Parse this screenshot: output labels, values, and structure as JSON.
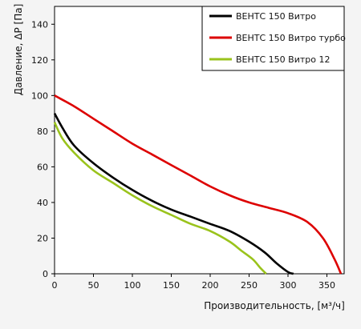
{
  "chart_data": {
    "type": "line",
    "title": "",
    "xlabel": "Производительность, [м³/ч]",
    "ylabel": "Давление, ΔP [Па]",
    "xlim": [
      0,
      390
    ],
    "ylim": [
      0,
      150
    ],
    "xticks": [
      0,
      50,
      100,
      150,
      200,
      250,
      300,
      350
    ],
    "yticks": [
      0,
      20,
      40,
      60,
      80,
      100,
      120,
      140
    ],
    "grid": false,
    "legend_position": "top-right",
    "series": [
      {
        "name": "ВЕНТС 150 Витро",
        "color": "#000000",
        "points": [
          [
            0,
            90
          ],
          [
            10,
            82
          ],
          [
            25,
            72
          ],
          [
            50,
            62
          ],
          [
            75,
            54
          ],
          [
            100,
            47
          ],
          [
            125,
            41
          ],
          [
            150,
            36
          ],
          [
            175,
            32
          ],
          [
            200,
            28
          ],
          [
            225,
            24
          ],
          [
            250,
            18
          ],
          [
            270,
            12
          ],
          [
            285,
            6
          ],
          [
            300,
            1
          ],
          [
            307,
            0
          ]
        ]
      },
      {
        "name": "ВЕНТС 150 Витро турбо",
        "color": "#dd0000",
        "points": [
          [
            0,
            100
          ],
          [
            25,
            94
          ],
          [
            50,
            87
          ],
          [
            75,
            80
          ],
          [
            100,
            73
          ],
          [
            125,
            67
          ],
          [
            150,
            61
          ],
          [
            175,
            55
          ],
          [
            200,
            49
          ],
          [
            225,
            44
          ],
          [
            250,
            40
          ],
          [
            275,
            37
          ],
          [
            300,
            34
          ],
          [
            325,
            29
          ],
          [
            345,
            20
          ],
          [
            360,
            8
          ],
          [
            368,
            0
          ]
        ]
      },
      {
        "name": "ВЕНТС 150 Витро 12",
        "color": "#9ac31c",
        "points": [
          [
            0,
            85
          ],
          [
            10,
            76
          ],
          [
            25,
            68
          ],
          [
            50,
            58
          ],
          [
            75,
            51
          ],
          [
            100,
            44
          ],
          [
            125,
            38
          ],
          [
            150,
            33
          ],
          [
            175,
            28
          ],
          [
            200,
            24
          ],
          [
            225,
            18
          ],
          [
            240,
            13
          ],
          [
            255,
            8
          ],
          [
            265,
            3
          ],
          [
            272,
            0
          ]
        ]
      }
    ]
  }
}
